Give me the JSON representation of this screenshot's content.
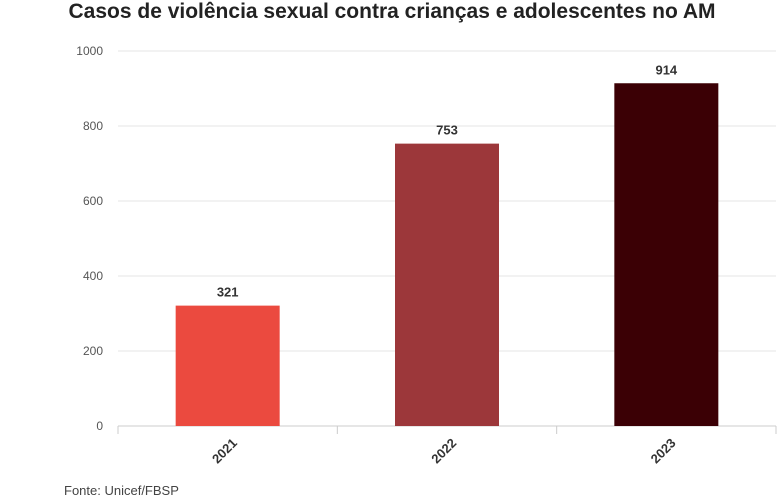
{
  "chart_data": {
    "type": "bar",
    "title": "Casos de violência sexual contra crianças e adolescentes no AM",
    "categories": [
      "2021",
      "2022",
      "2023"
    ],
    "values": [
      321,
      753,
      914
    ],
    "colors": [
      "#eb4a3f",
      "#9c373a",
      "#3b0005"
    ],
    "xlabel": "",
    "ylabel": "",
    "ylim": [
      0,
      1000
    ],
    "yticks": [
      0,
      200,
      400,
      600,
      800,
      1000
    ],
    "grid": true,
    "legend": "none"
  },
  "source": "Fonte: Unicef/FBSP"
}
